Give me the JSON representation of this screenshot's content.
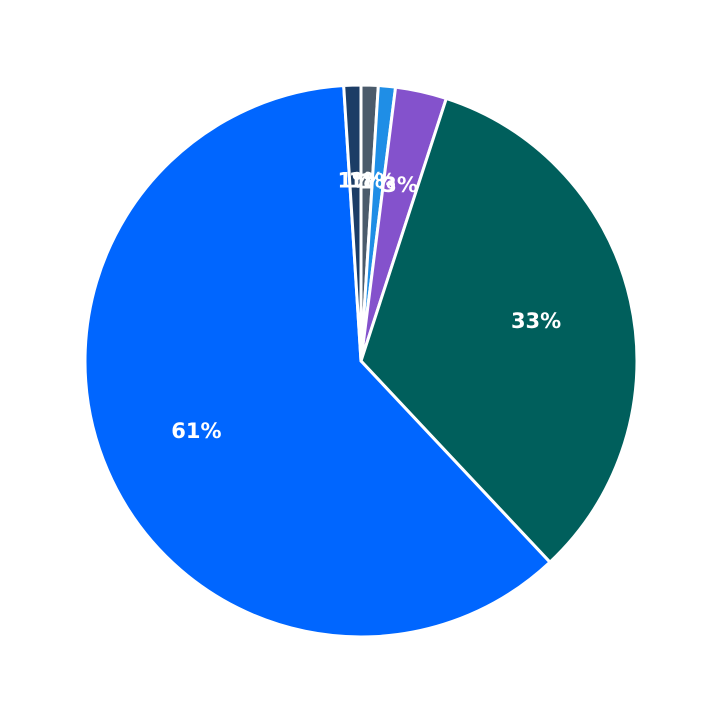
{
  "chart_data": {
    "type": "pie",
    "categories": [
      null,
      null,
      null,
      null,
      null,
      null
    ],
    "values": [
      1,
      1,
      3,
      33,
      61,
      1
    ],
    "value_labels": [
      "1%",
      "1%",
      "3%",
      "33%",
      "61%",
      "1%"
    ],
    "colors": [
      "#4b5b6b",
      "#1f8ee6",
      "#8452cc",
      "#005f5c",
      "#0066ff",
      "#1c3d66"
    ],
    "direction": "clockwise"
  }
}
